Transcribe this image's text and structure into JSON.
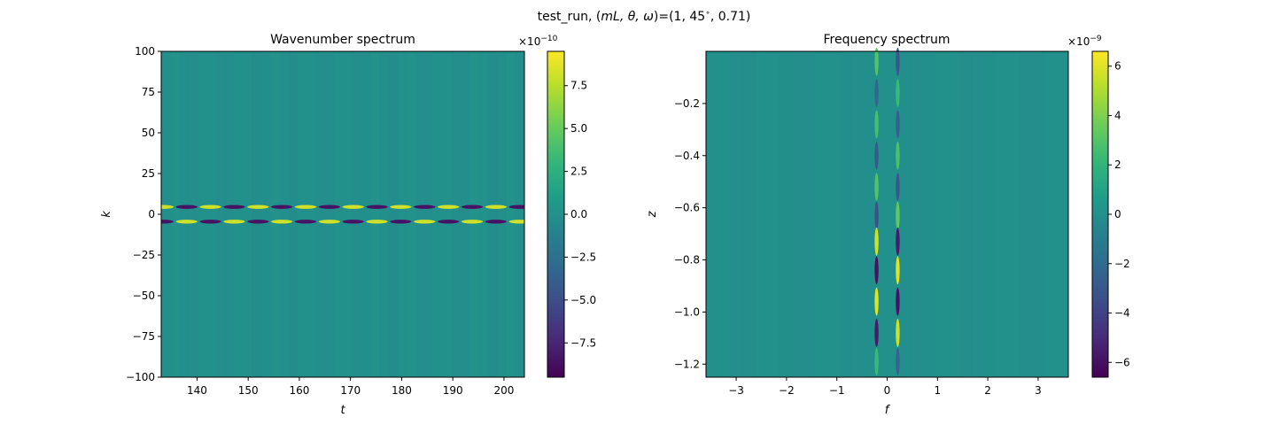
{
  "suptitle": {
    "prefix": "test_run, (",
    "vars": "mL, θ, ω",
    "suffix": ")=(1, 45",
    "degree": "∘",
    "tail": ", 0.71)"
  },
  "chart_data": [
    {
      "type": "heatmap",
      "title": "Wavenumber spectrum",
      "xlabel": "t",
      "ylabel": "k",
      "xlim": [
        133,
        204
      ],
      "ylim": [
        -100,
        100
      ],
      "xticks": [
        140,
        150,
        160,
        170,
        180,
        190,
        200
      ],
      "yticks": [
        100,
        75,
        50,
        25,
        0,
        -25,
        -50,
        -75,
        -100
      ],
      "colormap": "viridis",
      "colorbar": {
        "range": [
          -9.5e-10,
          9.5e-10
        ],
        "ticks": [
          7.5,
          5.0,
          2.5,
          0.0,
          -2.5,
          -5.0,
          -7.5
        ],
        "tick_labels": [
          "7.5",
          "5.0",
          "2.5",
          "0.0",
          "−2.5",
          "−5.0",
          "−7.5"
        ],
        "multiplier": "×10",
        "exponent": "−10"
      },
      "features": {
        "background": 0.0,
        "bands": [
          {
            "k": 4.5,
            "pattern": "alternating positive/negative lobes along t",
            "amplitude": 9.5e-10
          },
          {
            "k": -4.5,
            "pattern": "alternating negative/positive lobes along t",
            "amplitude": 9.5e-10
          }
        ],
        "lobe_period_t": 9.3
      }
    },
    {
      "type": "heatmap",
      "title": "Frequency spectrum",
      "xlabel": "f",
      "ylabel": "z",
      "xlim": [
        -3.6,
        3.6
      ],
      "ylim": [
        -1.25,
        0
      ],
      "xticks": [
        -3,
        -2,
        -1,
        0,
        1,
        2,
        3
      ],
      "xtick_labels": [
        "−3",
        "−2",
        "−1",
        "0",
        "1",
        "2",
        "3"
      ],
      "yticks": [
        -0.2,
        -0.4,
        -0.6,
        -0.8,
        -1.0,
        -1.2
      ],
      "ytick_labels": [
        "−0.2",
        "−0.4",
        "−0.6",
        "−0.8",
        "−1.0",
        "−1.2"
      ],
      "colormap": "viridis",
      "colorbar": {
        "range": [
          -6.6e-09,
          6.6e-09
        ],
        "ticks": [
          6,
          4,
          2,
          0,
          -2,
          -4,
          -6
        ],
        "tick_labels": [
          "6",
          "4",
          "2",
          "0",
          "−2",
          "−4",
          "−6"
        ],
        "multiplier": "×10",
        "exponent": "−9"
      },
      "features": {
        "background": 0.0,
        "lines": [
          {
            "f": -0.21,
            "pattern": "alternating lobes along z, strongest near z=-0.7 and z=-0.95"
          },
          {
            "f": 0.21,
            "pattern": "alternating lobes along z, opposite sign"
          }
        ]
      }
    }
  ]
}
